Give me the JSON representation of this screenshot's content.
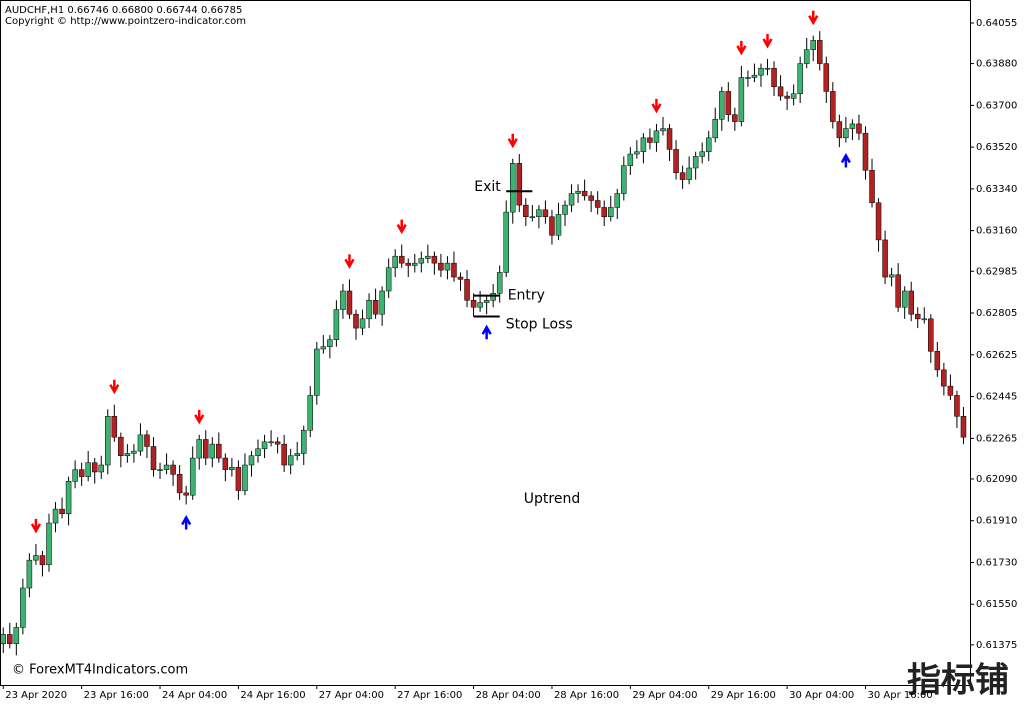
{
  "chart_data": {
    "type": "candlestick",
    "title": "AUDCHF,H1  0.66746 0.66800 0.66744 0.66785",
    "subtitle": "Copyright © http://www.pointzero-indicator.com",
    "up_color": "#3cb371",
    "down_color": "#b22222",
    "wick_color": "#000000",
    "open": [
      0.6138,
      0.6142,
      0.6138,
      0.6145,
      0.6162,
      0.6174,
      0.6176,
      0.6172,
      0.619,
      0.6196,
      0.6194,
      0.6208,
      0.6213,
      0.621,
      0.6216,
      0.6212,
      0.6215,
      0.6236,
      0.6227,
      0.6219,
      0.622,
      0.6221,
      0.6228,
      0.6223,
      0.6213,
      0.6213,
      0.6215,
      0.6211,
      0.6203,
      0.6202,
      0.6218,
      0.6226,
      0.6218,
      0.6224,
      0.6218,
      0.6213,
      0.6214,
      0.6204,
      0.6215,
      0.6219,
      0.6222,
      0.6225,
      0.6225,
      0.6224,
      0.6215,
      0.6219,
      0.622,
      0.623,
      0.6245,
      0.6265,
      0.6266,
      0.6269,
      0.6282,
      0.629,
      0.628,
      0.6274,
      0.6278,
      0.6286,
      0.628,
      0.629,
      0.63,
      0.6305,
      0.6302,
      0.6301,
      0.6302,
      0.6304,
      0.6305,
      0.6302,
      0.6299,
      0.6302,
      0.6296,
      0.6295,
      0.6286,
      0.6283,
      0.6285,
      0.6286,
      0.6289,
      0.6298,
      0.6324,
      0.6345,
      0.6327,
      0.6322,
      0.6322,
      0.6325,
      0.6322,
      0.6314,
      0.6323,
      0.6327,
      0.6332,
      0.6333,
      0.6331,
      0.6329,
      0.6326,
      0.6322,
      0.6326,
      0.6332,
      0.6344,
      0.6349,
      0.635,
      0.6356,
      0.6354,
      0.6359,
      0.636,
      0.6351,
      0.6341,
      0.6338,
      0.6343,
      0.6348,
      0.635,
      0.6356,
      0.6364,
      0.6376,
      0.6366,
      0.6363,
      0.6382,
      0.6382,
      0.6383,
      0.6386,
      0.6386,
      0.6378,
      0.6374,
      0.6373,
      0.6375,
      0.6388,
      0.6394,
      0.6398,
      0.6388,
      0.6376,
      0.6363,
      0.6356,
      0.636,
      0.6362,
      0.6358,
      0.6342,
      0.6328,
      0.6312,
      0.6296,
      0.6297,
      0.6283,
      0.629,
      0.628,
      0.6278,
      0.6278,
      0.6264,
      0.6256,
      0.6249,
      0.6245,
      0.6236
    ],
    "high": [
      0.6145,
      0.6147,
      0.6147,
      0.6166,
      0.6177,
      0.6181,
      0.6178,
      0.6194,
      0.6199,
      0.6201,
      0.621,
      0.6217,
      0.6216,
      0.6221,
      0.6218,
      0.6219,
      0.6239,
      0.6241,
      0.6229,
      0.6224,
      0.6224,
      0.6233,
      0.623,
      0.6227,
      0.6216,
      0.622,
      0.6217,
      0.6215,
      0.6206,
      0.6223,
      0.6228,
      0.623,
      0.6227,
      0.6229,
      0.622,
      0.6218,
      0.6217,
      0.622,
      0.6221,
      0.6226,
      0.6228,
      0.623,
      0.6227,
      0.6228,
      0.6222,
      0.6225,
      0.6232,
      0.6249,
      0.6268,
      0.6271,
      0.6271,
      0.6286,
      0.6293,
      0.6295,
      0.6282,
      0.6282,
      0.6289,
      0.6291,
      0.6292,
      0.6304,
      0.6308,
      0.631,
      0.6304,
      0.6306,
      0.6307,
      0.631,
      0.6307,
      0.6306,
      0.6305,
      0.6307,
      0.6298,
      0.6299,
      0.6289,
      0.629,
      0.6288,
      0.6293,
      0.6301,
      0.6329,
      0.6347,
      0.6349,
      0.633,
      0.6327,
      0.6327,
      0.6329,
      0.6325,
      0.6328,
      0.6329,
      0.6336,
      0.6336,
      0.6338,
      0.6333,
      0.6333,
      0.6329,
      0.6331,
      0.6334,
      0.6348,
      0.6352,
      0.6355,
      0.6358,
      0.636,
      0.6362,
      0.6365,
      0.6362,
      0.6355,
      0.6344,
      0.6348,
      0.635,
      0.6354,
      0.6359,
      0.6369,
      0.6378,
      0.638,
      0.6369,
      0.6387,
      0.6385,
      0.6388,
      0.6388,
      0.639,
      0.6389,
      0.6383,
      0.6376,
      0.6379,
      0.6391,
      0.6399,
      0.64,
      0.6402,
      0.6391,
      0.638,
      0.6366,
      0.6365,
      0.6364,
      0.6366,
      0.6361,
      0.6347,
      0.633,
      0.6316,
      0.63,
      0.6302,
      0.6292,
      0.6294,
      0.6283,
      0.6283,
      0.628,
      0.6268,
      0.6259,
      0.6254,
      0.6247,
      0.624
    ],
    "low": [
      0.6134,
      0.6136,
      0.6133,
      0.6142,
      0.6158,
      0.6172,
      0.6167,
      0.6169,
      0.6186,
      0.6192,
      0.6189,
      0.6205,
      0.6206,
      0.6208,
      0.6207,
      0.6209,
      0.6211,
      0.6225,
      0.6214,
      0.6216,
      0.6216,
      0.6219,
      0.6218,
      0.621,
      0.6209,
      0.6211,
      0.6206,
      0.62,
      0.6198,
      0.62,
      0.6213,
      0.6215,
      0.6214,
      0.6216,
      0.6208,
      0.621,
      0.62,
      0.6202,
      0.621,
      0.6216,
      0.6218,
      0.6223,
      0.622,
      0.6212,
      0.6211,
      0.6217,
      0.6215,
      0.6227,
      0.6241,
      0.6263,
      0.6261,
      0.6266,
      0.6278,
      0.6278,
      0.6269,
      0.6271,
      0.6274,
      0.6278,
      0.6275,
      0.6287,
      0.6296,
      0.63,
      0.6296,
      0.6298,
      0.6298,
      0.6302,
      0.6297,
      0.6296,
      0.6295,
      0.6294,
      0.629,
      0.6283,
      0.6279,
      0.6281,
      0.628,
      0.6283,
      0.6285,
      0.6296,
      0.6319,
      0.6324,
      0.6318,
      0.632,
      0.6317,
      0.6319,
      0.631,
      0.6312,
      0.6318,
      0.6324,
      0.6328,
      0.6329,
      0.6324,
      0.6323,
      0.6318,
      0.632,
      0.6321,
      0.6329,
      0.634,
      0.6347,
      0.6345,
      0.6351,
      0.635,
      0.6357,
      0.6346,
      0.6338,
      0.6334,
      0.6336,
      0.6338,
      0.6345,
      0.6346,
      0.6354,
      0.6359,
      0.6363,
      0.6359,
      0.6361,
      0.6378,
      0.638,
      0.6378,
      0.6383,
      0.6374,
      0.6372,
      0.6368,
      0.637,
      0.6371,
      0.6386,
      0.6389,
      0.6385,
      0.6371,
      0.636,
      0.6352,
      0.6354,
      0.6355,
      0.6355,
      0.6338,
      0.6326,
      0.6307,
      0.6293,
      0.6292,
      0.6281,
      0.6278,
      0.6277,
      0.6274,
      0.6276,
      0.6259,
      0.6253,
      0.6245,
      0.6243,
      0.6231,
      0.6224
    ],
    "close": [
      0.6142,
      0.6138,
      0.6145,
      0.6162,
      0.6174,
      0.6176,
      0.6172,
      0.619,
      0.6196,
      0.6194,
      0.6208,
      0.6213,
      0.621,
      0.6216,
      0.6212,
      0.6215,
      0.6236,
      0.6227,
      0.6219,
      0.622,
      0.6221,
      0.6228,
      0.6223,
      0.6213,
      0.6213,
      0.6215,
      0.6211,
      0.6203,
      0.6202,
      0.6218,
      0.6226,
      0.6218,
      0.6224,
      0.6218,
      0.6213,
      0.6214,
      0.6204,
      0.6215,
      0.6219,
      0.6222,
      0.6225,
      0.6225,
      0.6224,
      0.6215,
      0.6219,
      0.622,
      0.623,
      0.6245,
      0.6265,
      0.6266,
      0.6269,
      0.6282,
      0.629,
      0.628,
      0.6274,
      0.6278,
      0.6286,
      0.628,
      0.629,
      0.63,
      0.6305,
      0.6302,
      0.6301,
      0.6302,
      0.6304,
      0.6305,
      0.6302,
      0.6299,
      0.6302,
      0.6296,
      0.6295,
      0.6286,
      0.6283,
      0.6285,
      0.6286,
      0.6289,
      0.6298,
      0.6324,
      0.6345,
      0.6327,
      0.6322,
      0.6322,
      0.6325,
      0.6322,
      0.6314,
      0.6323,
      0.6327,
      0.6332,
      0.6333,
      0.6331,
      0.6329,
      0.6326,
      0.6322,
      0.6326,
      0.6332,
      0.6344,
      0.6349,
      0.635,
      0.6356,
      0.6354,
      0.6359,
      0.636,
      0.6351,
      0.6341,
      0.6338,
      0.6343,
      0.6348,
      0.635,
      0.6356,
      0.6364,
      0.6376,
      0.6366,
      0.6363,
      0.6382,
      0.6382,
      0.6383,
      0.6386,
      0.6386,
      0.6378,
      0.6374,
      0.6373,
      0.6375,
      0.6388,
      0.6394,
      0.6398,
      0.6388,
      0.6376,
      0.6363,
      0.6356,
      0.636,
      0.6362,
      0.6358,
      0.6342,
      0.6328,
      0.6312,
      0.6296,
      0.6297,
      0.6283,
      0.629,
      0.628,
      0.6278,
      0.6278,
      0.6264,
      0.6256,
      0.6249,
      0.6245,
      0.6236,
      0.6227
    ],
    "sell_signals": [
      5,
      17,
      30,
      53,
      61,
      78,
      100,
      113,
      117,
      124
    ],
    "sell_color": "#ff0000",
    "buy_signals": [
      28,
      74,
      129
    ],
    "buy_color": "#0000ff",
    "levels": [
      {
        "label": "Exit",
        "value": 0.6333,
        "x": [
          77,
          81
        ]
      },
      {
        "label": "Entry",
        "value": 0.6288,
        "x": [
          72,
          76
        ]
      },
      {
        "label": "Stop Loss",
        "value": 0.6279,
        "x": [
          72,
          76
        ]
      }
    ],
    "annotation": "Uptrend",
    "xlim": [
      -0.5,
      148
    ],
    "xticks": [
      {
        "value": 0,
        "label": "23 Apr 2020"
      },
      {
        "value": 12,
        "label": "23 Apr 16:00"
      },
      {
        "value": 24,
        "label": "24 Apr 04:00"
      },
      {
        "value": 36,
        "label": "24 Apr 16:00"
      },
      {
        "value": 48,
        "label": "27 Apr 04:00"
      },
      {
        "value": 60,
        "label": "27 Apr 16:00"
      },
      {
        "value": 72,
        "label": "28 Apr 04:00"
      },
      {
        "value": 84,
        "label": "28 Apr 16:00"
      },
      {
        "value": 96,
        "label": "29 Apr 04:00"
      },
      {
        "value": 108,
        "label": "29 Apr 16:00"
      },
      {
        "value": 120,
        "label": "30 Apr 04:00"
      },
      {
        "value": 132,
        "label": "30 Apr 16:00"
      }
    ],
    "ylim": [
      0.61202,
      0.64154
    ],
    "yticks": [
      {
        "value": 0.64055,
        "label": "0.64055"
      },
      {
        "value": 0.6388,
        "label": "0.63880"
      },
      {
        "value": 0.637,
        "label": "0.63700"
      },
      {
        "value": 0.6352,
        "label": "0.63520"
      },
      {
        "value": 0.6334,
        "label": "0.63340"
      },
      {
        "value": 0.6316,
        "label": "0.63160"
      },
      {
        "value": 0.62985,
        "label": "0.62985"
      },
      {
        "value": 0.62805,
        "label": "0.62805"
      },
      {
        "value": 0.62625,
        "label": "0.62625"
      },
      {
        "value": 0.62445,
        "label": "0.62445"
      },
      {
        "value": 0.62265,
        "label": "0.62265"
      },
      {
        "value": 0.6209,
        "label": "0.62090"
      },
      {
        "value": 0.6191,
        "label": "0.61910"
      },
      {
        "value": 0.6173,
        "label": "0.61730"
      },
      {
        "value": 0.6155,
        "label": "0.61550"
      },
      {
        "value": 0.61375,
        "label": "0.61375"
      }
    ]
  },
  "footer": "© ForexMT4Indicators.com",
  "watermark": "指标铺"
}
